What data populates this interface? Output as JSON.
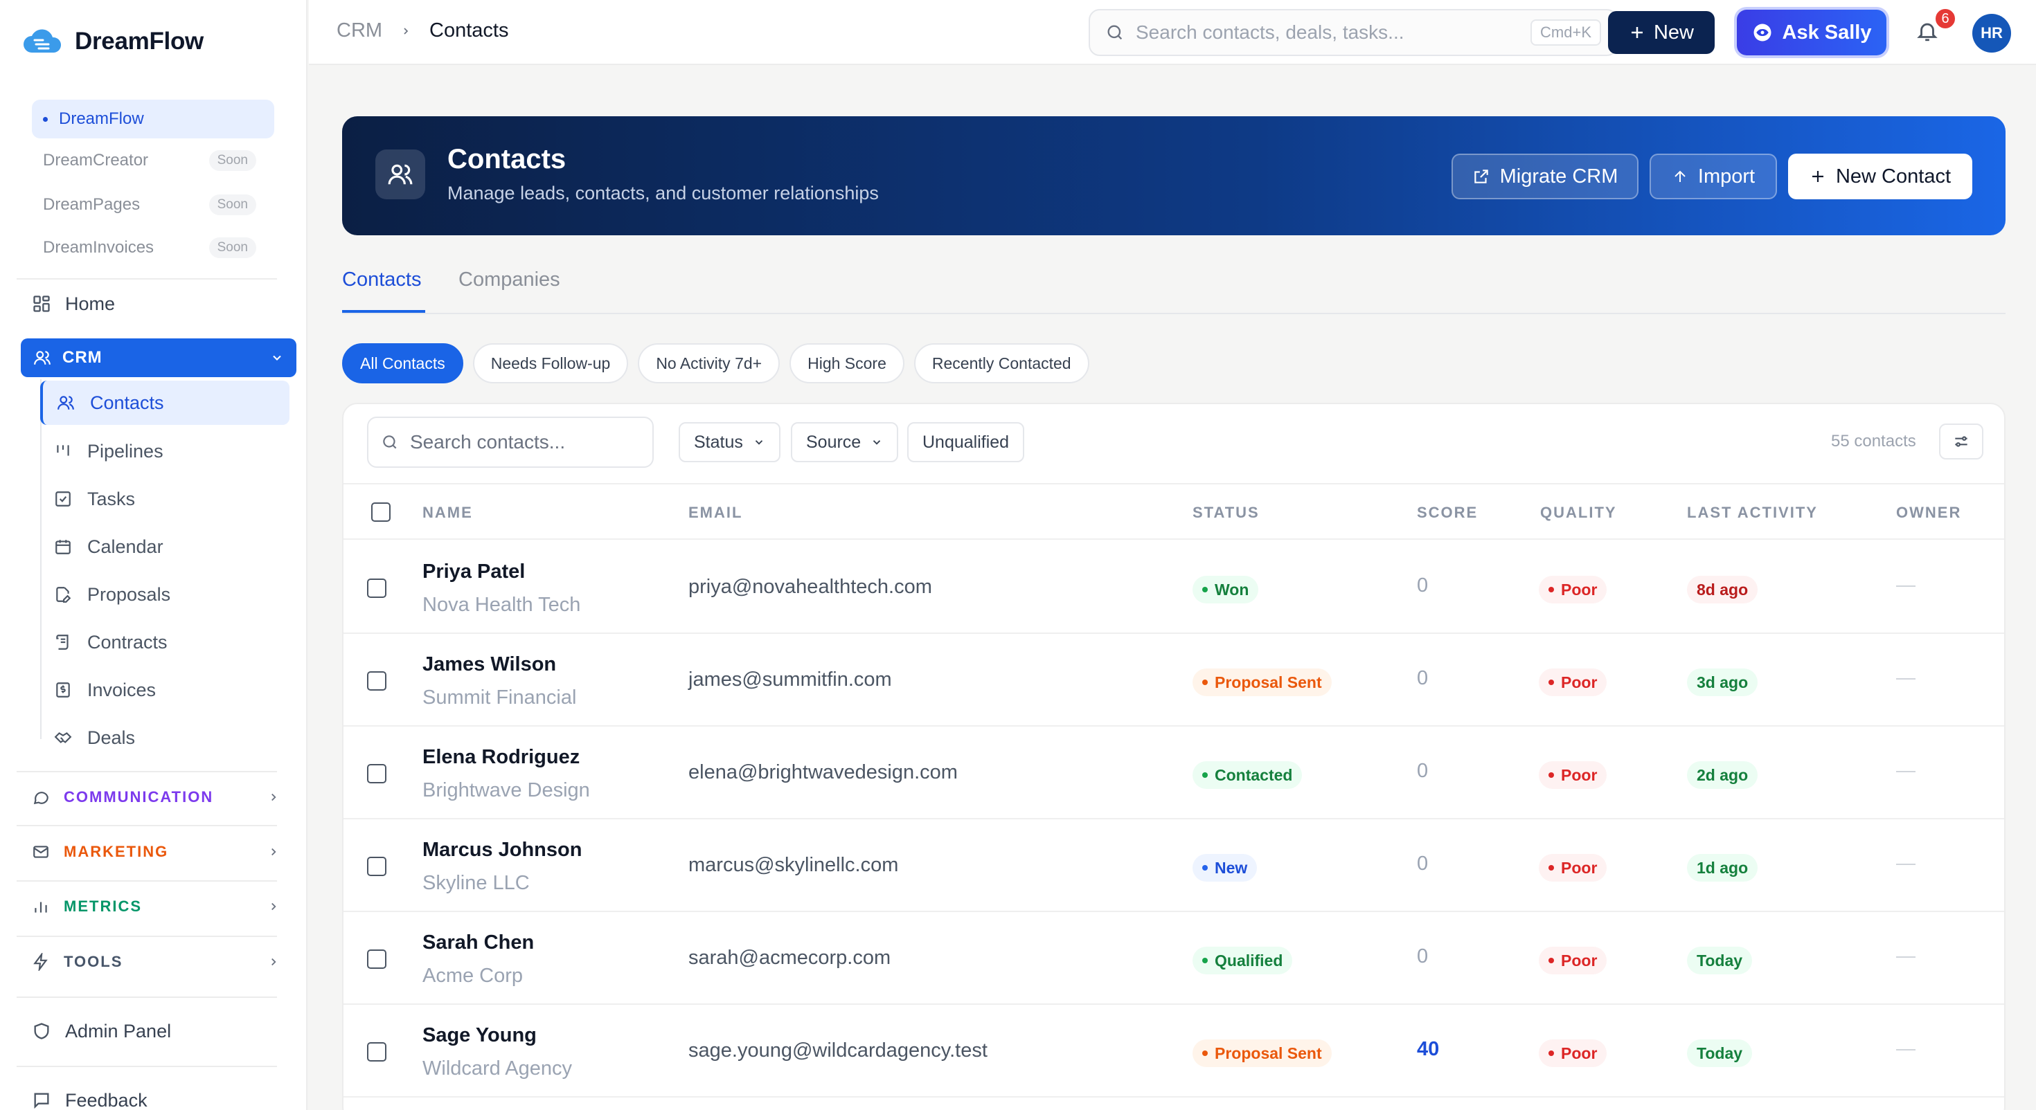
{
  "brand": {
    "name": "DreamFlow"
  },
  "apps": [
    {
      "label": "DreamFlow",
      "badge": ""
    },
    {
      "label": "DreamCreator",
      "badge": "Soon"
    },
    {
      "label": "DreamPages",
      "badge": "Soon"
    },
    {
      "label": "DreamInvoices",
      "badge": "Soon"
    }
  ],
  "nav": {
    "home": "Home",
    "crm": "CRM",
    "crm_items": [
      "Contacts",
      "Pipelines",
      "Tasks",
      "Calendar",
      "Proposals",
      "Contracts",
      "Invoices",
      "Deals"
    ],
    "sections": [
      {
        "label": "COMMUNICATION",
        "color": "#7c3aed"
      },
      {
        "label": "MARKETING",
        "color": "#ea580c"
      },
      {
        "label": "METRICS",
        "color": "#059669"
      },
      {
        "label": "TOOLS",
        "color": "#475569"
      }
    ],
    "admin": "Admin Panel",
    "feedback": "Feedback"
  },
  "topbar": {
    "breadcrumb": [
      "CRM",
      "Contacts"
    ],
    "search_placeholder": "Search contacts, deals, tasks...",
    "shortcut": "Cmd+K",
    "new_label": "New",
    "sally_label": "Ask Sally",
    "notifications": "6",
    "avatar": "HR"
  },
  "hero": {
    "title": "Contacts",
    "subtitle": "Manage leads, contacts, and customer relationships",
    "migrate": "Migrate CRM",
    "import": "Import",
    "new_contact": "New Contact"
  },
  "tabs": [
    "Contacts",
    "Companies"
  ],
  "chips": [
    "All Contacts",
    "Needs Follow-up",
    "No Activity 7d+",
    "High Score",
    "Recently Contacted"
  ],
  "toolbar": {
    "search_placeholder": "Search contacts...",
    "status": "Status",
    "source": "Source",
    "unqualified": "Unqualified",
    "count": "55 contacts"
  },
  "columns": [
    "NAME",
    "EMAIL",
    "STATUS",
    "SCORE",
    "QUALITY",
    "LAST ACTIVITY",
    "OWNER"
  ],
  "rows": [
    {
      "name": "Priya Patel",
      "company": "Nova Health Tech",
      "email": "priya@novahealthtech.com",
      "status": "Won",
      "score": "0",
      "quality": "Poor",
      "activity": "8d ago"
    },
    {
      "name": "James Wilson",
      "company": "Summit Financial",
      "email": "james@summitfin.com",
      "status": "Proposal Sent",
      "score": "0",
      "quality": "Poor",
      "activity": "3d ago"
    },
    {
      "name": "Elena Rodriguez",
      "company": "Brightwave Design",
      "email": "elena@brightwavedesign.com",
      "status": "Contacted",
      "score": "0",
      "quality": "Poor",
      "activity": "2d ago"
    },
    {
      "name": "Marcus Johnson",
      "company": "Skyline LLC",
      "email": "marcus@skylinellc.com",
      "status": "New",
      "score": "0",
      "quality": "Poor",
      "activity": "1d ago"
    },
    {
      "name": "Sarah Chen",
      "company": "Acme Corp",
      "email": "sarah@acmecorp.com",
      "status": "Qualified",
      "score": "0",
      "quality": "Poor",
      "activity": "Today"
    },
    {
      "name": "Sage Young",
      "company": "Wildcard Agency",
      "email": "sage.young@wildcardagency.test",
      "status": "Proposal Sent",
      "score": "40",
      "quality": "Poor",
      "activity": "Today"
    }
  ],
  "colors": {
    "accent": "#1a64e6",
    "navy": "#0b2350"
  }
}
